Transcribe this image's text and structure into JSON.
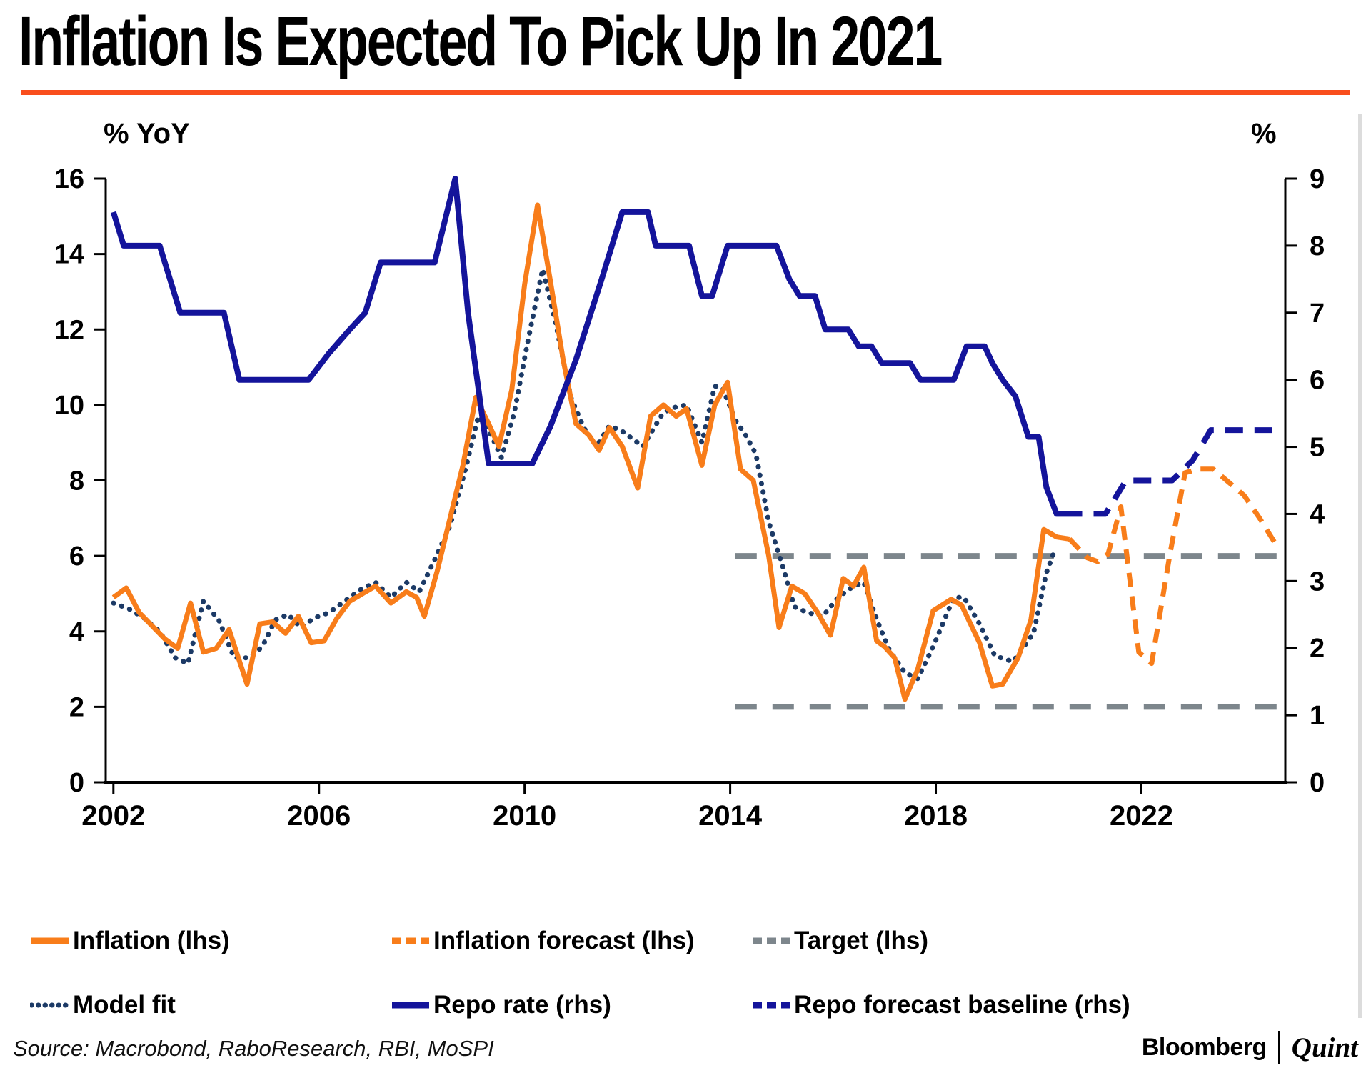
{
  "header": {
    "title": "Inflation Is Expected To Pick Up In 2021"
  },
  "colors": {
    "orange": "#F87D1A",
    "navy": "#14149B",
    "model_fit": "#1C3A66",
    "gray": "#7D868C",
    "rule": "#F94E1D",
    "axis": "#000000"
  },
  "chart_data": {
    "type": "line",
    "title": "Inflation Is Expected To Pick Up In 2021",
    "grid": false,
    "legend_position": "bottom",
    "x_axis": {
      "range": [
        2001.85,
        2024.8
      ],
      "ticks": [
        2002,
        2006,
        2010,
        2014,
        2018,
        2022
      ]
    },
    "y_left": {
      "label": "% YoY",
      "range": [
        0,
        16
      ],
      "ticks": [
        0,
        2,
        4,
        6,
        8,
        10,
        12,
        14,
        16
      ]
    },
    "y_right": {
      "label": "%",
      "range": [
        0,
        9
      ],
      "ticks": [
        0,
        1,
        2,
        3,
        4,
        5,
        6,
        7,
        8,
        9
      ]
    },
    "series": [
      {
        "id": "target_lower",
        "name": "Target (lhs)",
        "axis": "left",
        "line": "dashed",
        "color": "#7D868C",
        "width": 8,
        "points": [
          [
            2014.1,
            2.0
          ],
          [
            2024.7,
            2.0
          ]
        ]
      },
      {
        "id": "target",
        "name": "Target (lhs)",
        "axis": "left",
        "line": "dashed",
        "color": "#7D868C",
        "width": 8,
        "points": [
          [
            2014.1,
            6.0
          ],
          [
            2024.7,
            6.0
          ]
        ]
      },
      {
        "id": "model_fit",
        "name": "Model fit",
        "axis": "left",
        "line": "dotted",
        "color": "#1C3A66",
        "width": 7,
        "points": [
          [
            2002.0,
            4.75
          ],
          [
            2002.3,
            4.6
          ],
          [
            2002.6,
            4.35
          ],
          [
            2002.9,
            4.0
          ],
          [
            2003.2,
            3.3
          ],
          [
            2003.45,
            3.15
          ],
          [
            2003.75,
            4.8
          ],
          [
            2004.05,
            4.3
          ],
          [
            2004.35,
            3.3
          ],
          [
            2004.65,
            3.3
          ],
          [
            2004.9,
            3.6
          ],
          [
            2005.15,
            4.3
          ],
          [
            2005.4,
            4.45
          ],
          [
            2005.65,
            4.1
          ],
          [
            2005.9,
            4.35
          ],
          [
            2006.2,
            4.5
          ],
          [
            2006.5,
            4.8
          ],
          [
            2006.8,
            5.1
          ],
          [
            2007.1,
            5.3
          ],
          [
            2007.4,
            4.9
          ],
          [
            2007.7,
            5.3
          ],
          [
            2007.95,
            5.05
          ],
          [
            2008.25,
            5.9
          ],
          [
            2008.55,
            6.8
          ],
          [
            2008.85,
            8.3
          ],
          [
            2009.1,
            9.7
          ],
          [
            2009.35,
            9.2
          ],
          [
            2009.55,
            8.6
          ],
          [
            2009.8,
            9.8
          ],
          [
            2010.05,
            11.6
          ],
          [
            2010.35,
            13.6
          ],
          [
            2010.6,
            12.2
          ],
          [
            2010.9,
            10.2
          ],
          [
            2011.15,
            9.4
          ],
          [
            2011.4,
            8.9
          ],
          [
            2011.65,
            9.45
          ],
          [
            2011.9,
            9.3
          ],
          [
            2012.3,
            8.9
          ],
          [
            2012.7,
            9.8
          ],
          [
            2012.95,
            9.95
          ],
          [
            2013.15,
            10.0
          ],
          [
            2013.45,
            9.0
          ],
          [
            2013.7,
            10.5
          ],
          [
            2013.85,
            10.45
          ],
          [
            2014.1,
            9.6
          ],
          [
            2014.3,
            9.2
          ],
          [
            2014.5,
            8.7
          ],
          [
            2014.75,
            6.9
          ],
          [
            2015.05,
            5.6
          ],
          [
            2015.25,
            4.65
          ],
          [
            2015.5,
            4.5
          ],
          [
            2015.8,
            4.4
          ],
          [
            2016.1,
            4.9
          ],
          [
            2016.4,
            5.2
          ],
          [
            2016.6,
            5.3
          ],
          [
            2016.87,
            4.25
          ],
          [
            2017.1,
            3.5
          ],
          [
            2017.4,
            2.9
          ],
          [
            2017.65,
            2.75
          ],
          [
            2017.95,
            3.6
          ],
          [
            2018.35,
            4.9
          ],
          [
            2018.55,
            4.9
          ],
          [
            2018.85,
            4.2
          ],
          [
            2019.15,
            3.35
          ],
          [
            2019.5,
            3.2
          ],
          [
            2019.9,
            3.95
          ],
          [
            2020.15,
            5.55
          ],
          [
            2020.3,
            6.1
          ]
        ]
      },
      {
        "id": "inflation",
        "name": "Inflation (lhs)",
        "axis": "left",
        "line": "solid",
        "color": "#F87D1A",
        "width": 7,
        "points": [
          [
            2002.0,
            4.9
          ],
          [
            2002.25,
            5.15
          ],
          [
            2002.5,
            4.5
          ],
          [
            2002.75,
            4.15
          ],
          [
            2003.0,
            3.8
          ],
          [
            2003.25,
            3.55
          ],
          [
            2003.5,
            4.75
          ],
          [
            2003.75,
            3.45
          ],
          [
            2004.0,
            3.55
          ],
          [
            2004.25,
            4.05
          ],
          [
            2004.6,
            2.6
          ],
          [
            2004.85,
            4.2
          ],
          [
            2005.1,
            4.25
          ],
          [
            2005.35,
            3.95
          ],
          [
            2005.6,
            4.4
          ],
          [
            2005.85,
            3.7
          ],
          [
            2006.1,
            3.75
          ],
          [
            2006.35,
            4.35
          ],
          [
            2006.6,
            4.8
          ],
          [
            2006.85,
            5.0
          ],
          [
            2007.1,
            5.2
          ],
          [
            2007.4,
            4.75
          ],
          [
            2007.7,
            5.05
          ],
          [
            2007.9,
            4.9
          ],
          [
            2008.05,
            4.4
          ],
          [
            2008.3,
            5.6
          ],
          [
            2008.55,
            7.0
          ],
          [
            2008.8,
            8.4
          ],
          [
            2009.05,
            10.2
          ],
          [
            2009.3,
            9.5
          ],
          [
            2009.5,
            8.9
          ],
          [
            2009.75,
            10.4
          ],
          [
            2010.0,
            13.2
          ],
          [
            2010.25,
            15.3
          ],
          [
            2010.5,
            13.3
          ],
          [
            2010.75,
            11.2
          ],
          [
            2011.0,
            9.5
          ],
          [
            2011.25,
            9.2
          ],
          [
            2011.45,
            8.8
          ],
          [
            2011.65,
            9.4
          ],
          [
            2011.9,
            8.9
          ],
          [
            2012.2,
            7.8
          ],
          [
            2012.45,
            9.7
          ],
          [
            2012.7,
            10.0
          ],
          [
            2012.95,
            9.7
          ],
          [
            2013.15,
            9.9
          ],
          [
            2013.45,
            8.4
          ],
          [
            2013.7,
            10.0
          ],
          [
            2013.95,
            10.6
          ],
          [
            2014.2,
            8.3
          ],
          [
            2014.45,
            8.0
          ],
          [
            2014.75,
            6.0
          ],
          [
            2014.95,
            4.1
          ],
          [
            2015.2,
            5.2
          ],
          [
            2015.45,
            5.0
          ],
          [
            2015.7,
            4.5
          ],
          [
            2015.95,
            3.9
          ],
          [
            2016.2,
            5.4
          ],
          [
            2016.4,
            5.2
          ],
          [
            2016.6,
            5.7
          ],
          [
            2016.85,
            3.75
          ],
          [
            2017.0,
            3.6
          ],
          [
            2017.2,
            3.3
          ],
          [
            2017.4,
            2.2
          ],
          [
            2017.65,
            3.0
          ],
          [
            2017.95,
            4.55
          ],
          [
            2018.3,
            4.85
          ],
          [
            2018.5,
            4.7
          ],
          [
            2018.85,
            3.7
          ],
          [
            2019.1,
            2.55
          ],
          [
            2019.3,
            2.6
          ],
          [
            2019.6,
            3.3
          ],
          [
            2019.85,
            4.3
          ],
          [
            2020.1,
            6.7
          ],
          [
            2020.35,
            6.5
          ],
          [
            2020.6,
            6.45
          ]
        ]
      },
      {
        "id": "inflation_forecast",
        "name": "Inflation forecast (lhs)",
        "axis": "left",
        "line": "dashed",
        "color": "#F87D1A",
        "width": 7,
        "points": [
          [
            2020.6,
            6.45
          ],
          [
            2020.95,
            5.95
          ],
          [
            2021.15,
            5.85
          ],
          [
            2021.35,
            6.05
          ],
          [
            2021.6,
            7.3
          ],
          [
            2021.95,
            3.45
          ],
          [
            2022.2,
            3.15
          ],
          [
            2022.55,
            6.0
          ],
          [
            2022.85,
            8.2
          ],
          [
            2023.1,
            8.3
          ],
          [
            2023.4,
            8.3
          ],
          [
            2023.7,
            7.95
          ],
          [
            2024.0,
            7.6
          ],
          [
            2024.3,
            7.0
          ],
          [
            2024.62,
            6.3
          ]
        ]
      },
      {
        "id": "repo",
        "name": "Repo rate (rhs)",
        "axis": "right",
        "line": "solid",
        "color": "#14149B",
        "width": 8,
        "points": [
          [
            2002.0,
            8.5
          ],
          [
            2002.2,
            8.0
          ],
          [
            2002.9,
            8.0
          ],
          [
            2003.3,
            7.0
          ],
          [
            2004.15,
            7.0
          ],
          [
            2004.45,
            6.0
          ],
          [
            2005.8,
            6.0
          ],
          [
            2006.2,
            6.4
          ],
          [
            2006.6,
            6.75
          ],
          [
            2006.9,
            7.0
          ],
          [
            2007.2,
            7.75
          ],
          [
            2008.25,
            7.75
          ],
          [
            2008.65,
            9.0
          ],
          [
            2008.9,
            7.0
          ],
          [
            2009.3,
            4.75
          ],
          [
            2010.15,
            4.75
          ],
          [
            2010.5,
            5.3
          ],
          [
            2011.0,
            6.3
          ],
          [
            2011.5,
            7.5
          ],
          [
            2011.9,
            8.5
          ],
          [
            2012.4,
            8.5
          ],
          [
            2012.55,
            8.0
          ],
          [
            2013.2,
            8.0
          ],
          [
            2013.45,
            7.25
          ],
          [
            2013.65,
            7.25
          ],
          [
            2013.95,
            8.0
          ],
          [
            2014.9,
            8.0
          ],
          [
            2015.15,
            7.5
          ],
          [
            2015.35,
            7.25
          ],
          [
            2015.65,
            7.25
          ],
          [
            2015.85,
            6.75
          ],
          [
            2016.3,
            6.75
          ],
          [
            2016.5,
            6.5
          ],
          [
            2016.75,
            6.5
          ],
          [
            2016.95,
            6.25
          ],
          [
            2017.5,
            6.25
          ],
          [
            2017.7,
            6.0
          ],
          [
            2018.35,
            6.0
          ],
          [
            2018.6,
            6.5
          ],
          [
            2018.95,
            6.5
          ],
          [
            2019.1,
            6.25
          ],
          [
            2019.3,
            6.0
          ],
          [
            2019.55,
            5.75
          ],
          [
            2019.8,
            5.15
          ],
          [
            2020.0,
            5.15
          ],
          [
            2020.15,
            4.4
          ],
          [
            2020.35,
            4.0
          ],
          [
            2020.5,
            4.0
          ]
        ]
      },
      {
        "id": "repo_forecast",
        "name": "Repo forecast baseline (rhs)",
        "axis": "right",
        "line": "dashed",
        "color": "#14149B",
        "width": 8,
        "points": [
          [
            2020.5,
            4.0
          ],
          [
            2021.3,
            4.0
          ],
          [
            2021.7,
            4.5
          ],
          [
            2022.6,
            4.5
          ],
          [
            2023.0,
            4.8
          ],
          [
            2023.35,
            5.25
          ],
          [
            2024.65,
            5.25
          ]
        ]
      }
    ]
  },
  "legend": {
    "rows": [
      [
        "inflation",
        "inflation_forecast",
        "target"
      ],
      [
        "model_fit",
        "repo",
        "repo_forecast"
      ]
    ]
  },
  "footer": {
    "source": "Source: Macrobond, RaboResearch, RBI, MoSPI",
    "brand": {
      "first": "Bloomberg",
      "second": "Quint"
    }
  }
}
